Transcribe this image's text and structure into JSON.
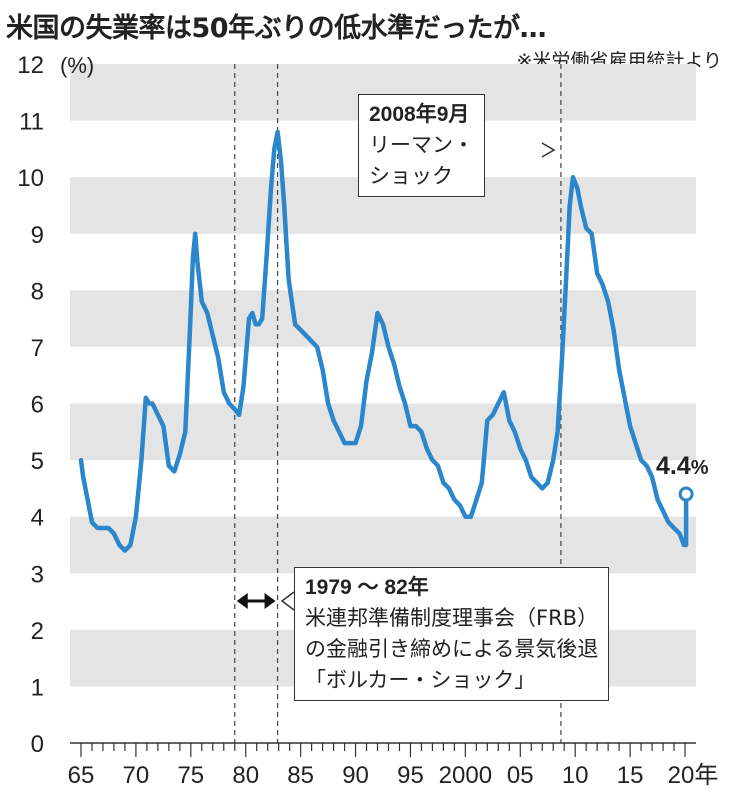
{
  "title": "米国の失業率は50年ぶりの低水準だったが…",
  "source": "※米労働省雇用統計より",
  "chart_data": {
    "type": "line",
    "unit_label": "(%)",
    "ylim": [
      0,
      12
    ],
    "y_ticks": [
      0,
      1,
      2,
      3,
      4,
      5,
      6,
      7,
      8,
      9,
      10,
      11,
      12
    ],
    "xlim": [
      1964,
      2021
    ],
    "x_tick_labels": [
      {
        "year": 1965,
        "label": "65"
      },
      {
        "year": 1970,
        "label": "70"
      },
      {
        "year": 1975,
        "label": "75"
      },
      {
        "year": 1980,
        "label": "80"
      },
      {
        "year": 1985,
        "label": "85"
      },
      {
        "year": 1990,
        "label": "90"
      },
      {
        "year": 1995,
        "label": "95"
      },
      {
        "year": 2000,
        "label": "2000"
      },
      {
        "year": 2005,
        "label": "05"
      },
      {
        "year": 2010,
        "label": "10"
      },
      {
        "year": 2015,
        "label": "15"
      },
      {
        "year": 2020,
        "label": "20年"
      }
    ],
    "grid": "alternating horizontal bands",
    "line_color": "#2b86cc",
    "series": [
      {
        "x": [
          1965.0,
          1965.2,
          1965.5,
          1966.0,
          1966.5,
          1967.0,
          1967.5,
          1968.0,
          1968.5,
          1969.0,
          1969.5,
          1970.0,
          1970.5,
          1970.9,
          1971.2,
          1971.5,
          1972.0,
          1972.5,
          1973.0,
          1973.5,
          1974.0,
          1974.5,
          1974.9,
          1975.2,
          1975.4,
          1975.6,
          1976.0,
          1976.5,
          1977.0,
          1977.5,
          1978.0,
          1978.5,
          1979.0,
          1979.4,
          1979.8,
          1980.3,
          1980.6,
          1980.9,
          1981.2,
          1981.5,
          1981.9,
          1982.3,
          1982.6,
          1982.9,
          1983.2,
          1983.5,
          1983.9,
          1984.5,
          1985.0,
          1985.5,
          1986.0,
          1986.5,
          1987.0,
          1987.5,
          1988.0,
          1988.5,
          1989.0,
          1989.5,
          1990.0,
          1990.5,
          1991.0,
          1991.5,
          1992.0,
          1992.5,
          1993.0,
          1993.5,
          1994.0,
          1994.5,
          1995.0,
          1995.5,
          1996.0,
          1996.5,
          1997.0,
          1997.5,
          1998.0,
          1998.5,
          1999.0,
          1999.5,
          2000.0,
          2000.5,
          2001.0,
          2001.5,
          2002.0,
          2002.5,
          2003.0,
          2003.5,
          2004.0,
          2004.5,
          2005.0,
          2005.5,
          2006.0,
          2006.5,
          2007.0,
          2007.5,
          2008.0,
          2008.4,
          2008.8,
          2009.2,
          2009.5,
          2009.8,
          2010.2,
          2010.5,
          2011.0,
          2011.5,
          2012.0,
          2012.5,
          2013.0,
          2013.5,
          2014.0,
          2014.5,
          2015.0,
          2015.5,
          2016.0,
          2016.5,
          2017.0,
          2017.5,
          2018.0,
          2018.5,
          2019.0,
          2019.5,
          2019.9,
          2020.1
        ],
        "values": [
          5.0,
          4.7,
          4.4,
          3.9,
          3.8,
          3.8,
          3.8,
          3.7,
          3.5,
          3.4,
          3.5,
          4.0,
          5.0,
          6.1,
          6.0,
          6.0,
          5.8,
          5.6,
          4.9,
          4.8,
          5.1,
          5.5,
          7.2,
          8.6,
          9.0,
          8.5,
          7.8,
          7.6,
          7.2,
          6.8,
          6.2,
          6.0,
          5.9,
          5.8,
          6.3,
          7.5,
          7.6,
          7.4,
          7.4,
          7.5,
          8.6,
          9.8,
          10.5,
          10.8,
          10.3,
          9.5,
          8.2,
          7.4,
          7.3,
          7.2,
          7.1,
          7.0,
          6.6,
          6.0,
          5.7,
          5.5,
          5.3,
          5.3,
          5.3,
          5.6,
          6.4,
          6.9,
          7.6,
          7.4,
          7.0,
          6.7,
          6.3,
          6.0,
          5.6,
          5.6,
          5.5,
          5.2,
          5.0,
          4.9,
          4.6,
          4.5,
          4.3,
          4.2,
          4.0,
          4.0,
          4.3,
          4.6,
          5.7,
          5.8,
          6.0,
          6.2,
          5.7,
          5.5,
          5.2,
          5.0,
          4.7,
          4.6,
          4.5,
          4.6,
          5.0,
          5.5,
          6.8,
          8.3,
          9.5,
          10.0,
          9.8,
          9.5,
          9.1,
          9.0,
          8.3,
          8.1,
          7.8,
          7.3,
          6.6,
          6.1,
          5.6,
          5.3,
          5.0,
          4.9,
          4.7,
          4.3,
          4.1,
          3.9,
          3.8,
          3.7,
          3.5,
          3.5
        ],
        "end_value": 4.4
      }
    ],
    "end_label": {
      "value": "4.4",
      "unit": "%"
    },
    "reference_lines": [
      1979,
      1982.9,
      2008.7
    ],
    "range_marker": [
      1979,
      1982.9
    ]
  },
  "annotations": {
    "lehman": {
      "heading": "2008年9月",
      "lines": [
        "リーマン・",
        "ショック"
      ]
    },
    "volcker": {
      "heading": "1979 ～ 82年",
      "lines": [
        "米連邦準備制度理事会（FRB）",
        "の金融引き締めによる景気後退",
        "「ボルカー・ショック」"
      ]
    }
  }
}
